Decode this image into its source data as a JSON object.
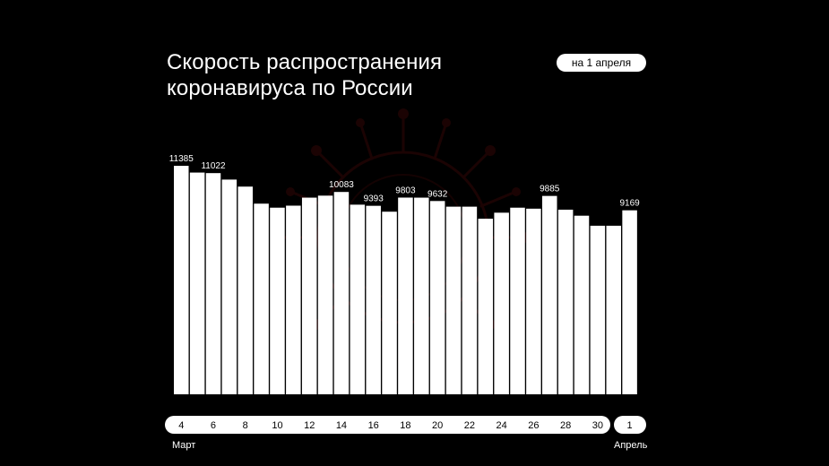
{
  "header": {
    "title_line1": "Скорость распространения",
    "title_line2": "коронавируса по России",
    "date_badge": "на 1 апреля"
  },
  "colors": {
    "background": "#000000",
    "bar": "#ffffff",
    "text": "#ffffff"
  },
  "chart_data": {
    "type": "bar",
    "title": "Скорость распространения коронавируса по России",
    "x": [
      "4",
      "5",
      "6",
      "7",
      "8",
      "9",
      "10",
      "11",
      "12",
      "13",
      "14",
      "15",
      "16",
      "17",
      "18",
      "19",
      "20",
      "21",
      "22",
      "23",
      "24",
      "25",
      "26",
      "27",
      "28",
      "29",
      "30",
      "31",
      "1"
    ],
    "values": [
      11385,
      11050,
      11022,
      10700,
      10350,
      9500,
      9300,
      9400,
      9800,
      9900,
      10083,
      9450,
      9393,
      9100,
      9803,
      9800,
      9632,
      9350,
      9350,
      8750,
      9050,
      9300,
      9250,
      9885,
      9200,
      8900,
      8400,
      8400,
      9169
    ],
    "data_labels": [
      {
        "x": "4",
        "text": "11385"
      },
      {
        "x": "6",
        "text": "11022"
      },
      {
        "x": "14",
        "text": "10083"
      },
      {
        "x": "16",
        "text": "9393"
      },
      {
        "x": "18",
        "text": "9803"
      },
      {
        "x": "20",
        "text": "9632"
      },
      {
        "x": "27",
        "text": "9885"
      },
      {
        "x": "1",
        "text": "9169"
      }
    ],
    "tick_labels_march": [
      "4",
      "6",
      "8",
      "10",
      "12",
      "14",
      "16",
      "18",
      "20",
      "22",
      "24",
      "26",
      "28",
      "30"
    ],
    "tick_labels_april": [
      "1"
    ],
    "month_labels": {
      "march": "Март",
      "april": "Апрель"
    },
    "ylim": [
      0,
      11700
    ],
    "grid": false,
    "legend": "none"
  }
}
